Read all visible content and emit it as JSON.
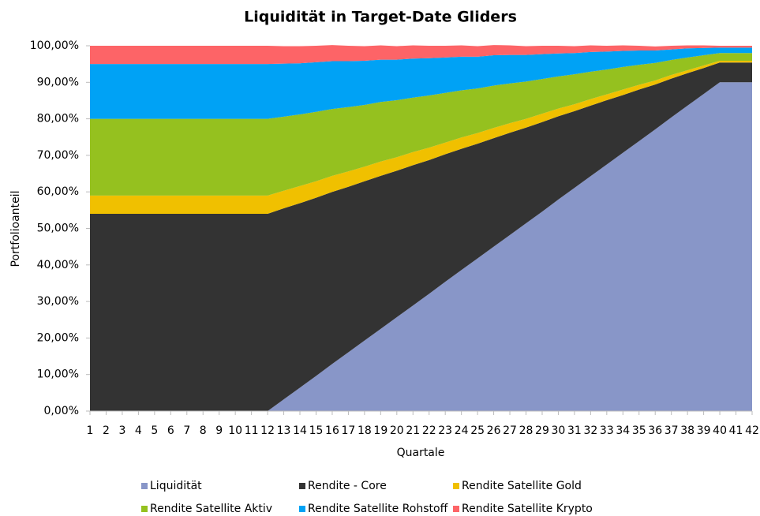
{
  "chart_data": {
    "type": "stacked_area",
    "title": "Liquidität in Target-Date Gliders",
    "x_label": "Quartale",
    "y_label": "Portfolioanteil",
    "categories": [
      "1",
      "2",
      "3",
      "4",
      "5",
      "6",
      "7",
      "8",
      "9",
      "10",
      "11",
      "12",
      "13",
      "14",
      "15",
      "16",
      "17",
      "18",
      "19",
      "20",
      "21",
      "22",
      "23",
      "24",
      "25",
      "26",
      "27",
      "28",
      "29",
      "30",
      "31",
      "32",
      "33",
      "34",
      "35",
      "36",
      "37",
      "38",
      "39",
      "40",
      "41",
      "42"
    ],
    "ylim": [
      0,
      100
    ],
    "yticks": [
      {
        "value": 0,
        "label": "0,00%"
      },
      {
        "value": 10,
        "label": "10,00%"
      },
      {
        "value": 20,
        "label": "20,00%"
      },
      {
        "value": 30,
        "label": "30,00%"
      },
      {
        "value": 40,
        "label": "40,00%"
      },
      {
        "value": 50,
        "label": "50,00%"
      },
      {
        "value": 60,
        "label": "60,00%"
      },
      {
        "value": 70,
        "label": "70,00%"
      },
      {
        "value": 80,
        "label": "80,00%"
      },
      {
        "value": 90,
        "label": "90,00%"
      },
      {
        "value": 100,
        "label": "100,00%"
      }
    ],
    "legend": "bottom",
    "series": [
      {
        "name": "Liquidität",
        "color": "#8896c8",
        "values": [
          0,
          0,
          0,
          0,
          0,
          0,
          0,
          0,
          0,
          0,
          0,
          0,
          3.2,
          6.4,
          9.6,
          12.9,
          16.1,
          19.3,
          22.5,
          25.7,
          28.9,
          32.1,
          35.4,
          38.6,
          41.8,
          45,
          48.2,
          51.4,
          54.6,
          57.9,
          61.1,
          64.3,
          67.5,
          70.7,
          73.9,
          77.1,
          80.4,
          83.6,
          86.8,
          90,
          90,
          90
        ]
      },
      {
        "name": "Rendite - Core",
        "color": "#333333",
        "values": [
          54,
          54,
          54,
          54,
          54,
          54,
          54,
          54,
          54,
          54,
          54,
          54,
          52.3,
          50.5,
          48.8,
          47.1,
          45.3,
          43.6,
          41.9,
          40.1,
          38.4,
          36.6,
          34.9,
          33.2,
          31.4,
          29.7,
          28,
          26.2,
          24.5,
          22.8,
          21,
          19.3,
          17.6,
          15.8,
          14.1,
          12.3,
          10.6,
          8.9,
          7.1,
          5.4,
          5.4,
          5.4
        ]
      },
      {
        "name": "Rendite Satellite Gold",
        "color": "#f0c000",
        "values": [
          5,
          5,
          5,
          5,
          5,
          5,
          5,
          5,
          5,
          5,
          5,
          5,
          4.8,
          4.7,
          4.5,
          4.4,
          4.2,
          4,
          3.9,
          3.7,
          3.6,
          3.4,
          3.2,
          3.1,
          2.9,
          2.8,
          2.6,
          2.4,
          2.3,
          2.1,
          1.9,
          1.8,
          1.6,
          1.5,
          1.3,
          1.1,
          1,
          0.8,
          0.7,
          0.5,
          0.5,
          0.5
        ]
      },
      {
        "name": "Rendite Satellite Aktiv",
        "color": "#95c11f",
        "values": [
          21,
          21,
          21,
          21,
          21,
          21,
          21,
          21,
          21,
          21,
          21,
          21,
          20.3,
          19.6,
          19,
          18.3,
          17.6,
          16.9,
          16.3,
          15.6,
          14.9,
          14.3,
          13.6,
          12.9,
          12.2,
          11.6,
          10.9,
          10.2,
          9.5,
          8.8,
          8.2,
          7.5,
          6.8,
          6.2,
          5.5,
          4.8,
          4.1,
          3.5,
          2.8,
          2.1,
          2.1,
          2.1
        ]
      },
      {
        "name": "Rendite Satellite Rohstoff",
        "color": "#00a2f5",
        "values": [
          15,
          15,
          15,
          15,
          15,
          15,
          15,
          15,
          15,
          15,
          15,
          15,
          14.5,
          14,
          13.6,
          13.1,
          12.6,
          12.1,
          11.6,
          11.1,
          10.7,
          10.2,
          9.7,
          9.2,
          8.7,
          8.3,
          7.8,
          7.3,
          6.8,
          6.3,
          5.8,
          5.4,
          4.9,
          4.4,
          3.9,
          3.4,
          2.9,
          2.5,
          2,
          1.5,
          1.5,
          1.5
        ]
      },
      {
        "name": "Rendite Satellite Krypto",
        "color": "#fd6467",
        "values": [
          5,
          5,
          5,
          5,
          5,
          5,
          5,
          5,
          5,
          5,
          5,
          5,
          4.8,
          4.7,
          4.5,
          4.4,
          4.2,
          4,
          3.9,
          3.7,
          3.6,
          3.4,
          3.2,
          3.1,
          2.9,
          2.8,
          2.6,
          2.4,
          2.3,
          2.1,
          1.9,
          1.8,
          1.6,
          1.5,
          1.3,
          1.1,
          1,
          0.8,
          0.7,
          0.5,
          0.5,
          0.5
        ]
      }
    ]
  }
}
